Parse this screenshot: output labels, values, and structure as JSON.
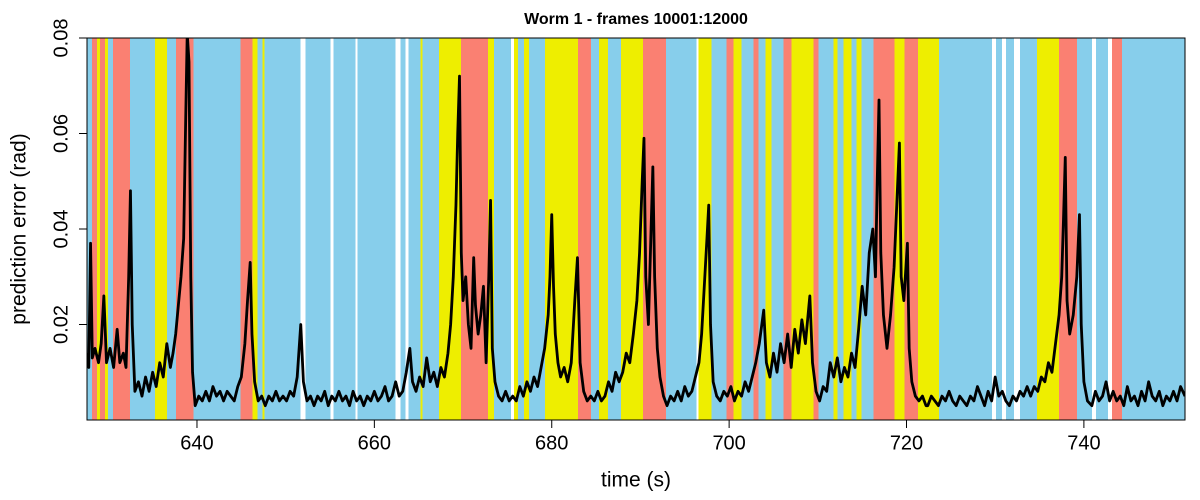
{
  "chart_data": {
    "type": "line",
    "title": "Worm 1 - frames 10001:12000",
    "x_label": "time (s)",
    "y_label": "prediction error (rad)",
    "xlim": [
      627.6,
      751.4
    ],
    "ylim": [
      0,
      0.08
    ],
    "xticks": [
      640,
      660,
      680,
      700,
      720,
      740
    ],
    "yticks": [
      0.02,
      0.04,
      0.06,
      0.08
    ],
    "line_color": "#000000",
    "band_palette": [
      "#87ceeb",
      "#fa8072",
      "#eeee00",
      "#ffffff"
    ],
    "band_edges": [
      627.6,
      628.16,
      628.73,
      629.07,
      629.63,
      629.97,
      630.54,
      632.46,
      635.28,
      636.64,
      637.66,
      638.9,
      639.58,
      644.89,
      646.24,
      646.81,
      647.37,
      647.6,
      651.67,
      652.23,
      655.06,
      655.4,
      657.88,
      658.11,
      662.4,
      662.97,
      663.53,
      663.87,
      665.23,
      665.45,
      667.26,
      669.75,
      672.8,
      673.48,
      675.4,
      675.74,
      676.19,
      676.87,
      677.43,
      679.24,
      682.97,
      684.44,
      685.34,
      686.36,
      687.83,
      690.31,
      692.91,
      696.3,
      696.53,
      698.0,
      699.69,
      700.48,
      701.38,
      702.74,
      703.31,
      704.1,
      704.78,
      706.13,
      707.04,
      709.52,
      710.09,
      711.78,
      712.24,
      712.91,
      713.82,
      714.38,
      714.94,
      716.3,
      718.67,
      719.8,
      721.27,
      723.64,
      729.63,
      730.09,
      730.76,
      731.22,
      732.12,
      732.8,
      734.72,
      737.21,
      739.24,
      740.93,
      741.38,
      742.74,
      743.19,
      744.32,
      751.4
    ],
    "band_states": [
      0,
      1,
      2,
      1,
      2,
      0,
      1,
      0,
      2,
      0,
      1,
      1,
      0,
      1,
      2,
      0,
      2,
      0,
      3,
      0,
      3,
      0,
      3,
      0,
      3,
      0,
      3,
      0,
      2,
      0,
      2,
      1,
      2,
      0,
      3,
      2,
      0,
      2,
      0,
      2,
      1,
      0,
      2,
      0,
      2,
      1,
      0,
      3,
      2,
      0,
      1,
      2,
      0,
      1,
      0,
      2,
      0,
      1,
      2,
      1,
      0,
      2,
      0,
      2,
      0,
      2,
      0,
      1,
      2,
      1,
      2,
      0,
      3,
      0,
      3,
      0,
      3,
      0,
      2,
      1,
      0,
      3,
      0,
      3,
      1,
      0
    ],
    "x": [
      627.6,
      627.8,
      628.0,
      628.2,
      628.5,
      628.9,
      629.2,
      629.5,
      629.8,
      630.2,
      630.6,
      631.0,
      631.3,
      631.7,
      632.0,
      632.3,
      632.5,
      632.7,
      633.0,
      633.4,
      633.8,
      634.2,
      634.6,
      635.0,
      635.4,
      635.8,
      636.2,
      636.6,
      637.0,
      637.3,
      637.6,
      637.9,
      638.2,
      638.5,
      638.7,
      638.9,
      639.1,
      639.3,
      639.5,
      639.8,
      640.2,
      640.6,
      641.0,
      641.4,
      641.8,
      642.2,
      642.6,
      643.0,
      643.4,
      643.8,
      644.2,
      644.6,
      645.0,
      645.4,
      645.7,
      646.0,
      646.2,
      646.5,
      646.9,
      647.3,
      647.7,
      648.1,
      648.5,
      648.9,
      649.3,
      649.7,
      650.1,
      650.5,
      650.9,
      651.3,
      651.7,
      652.0,
      652.4,
      652.8,
      653.2,
      653.6,
      654.0,
      654.4,
      654.8,
      655.2,
      655.6,
      656.0,
      656.4,
      656.8,
      657.2,
      657.6,
      658.0,
      658.4,
      658.8,
      659.2,
      659.6,
      660.0,
      660.4,
      660.8,
      661.2,
      661.6,
      662.0,
      662.4,
      662.8,
      663.2,
      663.6,
      664.0,
      664.3,
      664.7,
      665.1,
      665.5,
      665.9,
      666.3,
      666.7,
      667.1,
      667.5,
      667.9,
      668.3,
      668.6,
      668.9,
      669.2,
      669.4,
      669.6,
      669.8,
      670.0,
      670.3,
      670.6,
      670.9,
      671.2,
      671.4,
      671.7,
      672.0,
      672.3,
      672.6,
      672.9,
      673.1,
      673.3,
      673.6,
      674.0,
      674.4,
      674.8,
      675.2,
      675.6,
      676.0,
      676.4,
      676.8,
      677.2,
      677.6,
      678.0,
      678.4,
      678.8,
      679.2,
      679.6,
      679.8,
      680.0,
      680.2,
      680.4,
      680.7,
      681.0,
      681.4,
      681.8,
      682.2,
      682.6,
      682.9,
      683.2,
      683.6,
      684.0,
      684.4,
      684.8,
      685.2,
      685.6,
      686.0,
      686.4,
      686.8,
      687.2,
      687.6,
      688.0,
      688.4,
      688.8,
      689.2,
      689.6,
      689.9,
      690.2,
      690.4,
      690.6,
      690.9,
      691.2,
      691.4,
      691.6,
      691.9,
      692.2,
      692.6,
      693.0,
      693.4,
      693.8,
      694.2,
      694.6,
      695.0,
      695.4,
      695.8,
      696.2,
      696.6,
      696.9,
      697.2,
      697.5,
      697.7,
      697.9,
      698.2,
      698.6,
      699.0,
      699.4,
      699.8,
      700.2,
      700.6,
      701.0,
      701.4,
      701.8,
      702.2,
      702.6,
      703.0,
      703.4,
      703.9,
      704.2,
      704.6,
      705.0,
      705.4,
      705.8,
      706.2,
      706.6,
      707.0,
      707.4,
      707.8,
      708.2,
      708.6,
      709.1,
      709.4,
      709.8,
      710.2,
      710.6,
      711.0,
      711.4,
      711.8,
      712.2,
      712.6,
      713.0,
      713.4,
      713.8,
      714.2,
      714.6,
      715.0,
      715.4,
      715.8,
      716.2,
      716.5,
      716.7,
      716.9,
      717.1,
      717.4,
      717.8,
      718.2,
      718.6,
      718.9,
      719.2,
      719.4,
      719.7,
      720.1,
      720.3,
      720.6,
      721.0,
      721.4,
      721.8,
      722.2,
      722.4,
      722.8,
      723.2,
      723.6,
      724.0,
      724.4,
      724.8,
      725.2,
      725.6,
      726.0,
      726.4,
      726.8,
      727.2,
      727.6,
      728.0,
      728.4,
      728.8,
      729.2,
      729.6,
      730.0,
      730.4,
      730.8,
      731.2,
      731.6,
      732.0,
      732.4,
      732.8,
      733.2,
      733.6,
      734.0,
      734.4,
      734.8,
      735.2,
      735.6,
      736.0,
      736.4,
      736.8,
      737.2,
      737.5,
      737.7,
      737.9,
      738.1,
      738.4,
      738.8,
      739.2,
      739.5,
      739.7,
      740.0,
      740.4,
      740.9,
      741.3,
      741.7,
      742.1,
      742.5,
      742.9,
      743.3,
      743.7,
      744.1,
      744.5,
      744.9,
      745.3,
      745.7,
      746.1,
      746.5,
      746.9,
      747.3,
      747.7,
      748.1,
      748.5,
      748.9,
      749.3,
      749.7,
      750.1,
      750.5,
      750.9,
      751.4
    ],
    "values": [
      0.014,
      0.011,
      0.037,
      0.013,
      0.015,
      0.012,
      0.016,
      0.026,
      0.012,
      0.015,
      0.011,
      0.019,
      0.012,
      0.014,
      0.011,
      0.03,
      0.048,
      0.02,
      0.006,
      0.008,
      0.005,
      0.009,
      0.006,
      0.01,
      0.007,
      0.012,
      0.009,
      0.016,
      0.011,
      0.014,
      0.018,
      0.024,
      0.03,
      0.038,
      0.06,
      0.081,
      0.075,
      0.03,
      0.01,
      0.003,
      0.005,
      0.004,
      0.006,
      0.004,
      0.007,
      0.005,
      0.006,
      0.004,
      0.006,
      0.005,
      0.004,
      0.007,
      0.009,
      0.016,
      0.025,
      0.033,
      0.018,
      0.008,
      0.004,
      0.005,
      0.003,
      0.005,
      0.004,
      0.006,
      0.004,
      0.005,
      0.004,
      0.006,
      0.005,
      0.009,
      0.02,
      0.008,
      0.004,
      0.005,
      0.003,
      0.005,
      0.004,
      0.006,
      0.003,
      0.005,
      0.004,
      0.006,
      0.004,
      0.005,
      0.003,
      0.006,
      0.004,
      0.005,
      0.003,
      0.005,
      0.004,
      0.006,
      0.004,
      0.005,
      0.007,
      0.004,
      0.005,
      0.008,
      0.005,
      0.006,
      0.01,
      0.015,
      0.008,
      0.006,
      0.009,
      0.007,
      0.013,
      0.008,
      0.01,
      0.007,
      0.011,
      0.009,
      0.014,
      0.02,
      0.03,
      0.045,
      0.06,
      0.072,
      0.035,
      0.025,
      0.03,
      0.02,
      0.015,
      0.034,
      0.024,
      0.018,
      0.022,
      0.028,
      0.012,
      0.03,
      0.046,
      0.015,
      0.008,
      0.005,
      0.004,
      0.006,
      0.004,
      0.005,
      0.004,
      0.007,
      0.005,
      0.008,
      0.006,
      0.009,
      0.007,
      0.011,
      0.015,
      0.022,
      0.03,
      0.043,
      0.028,
      0.018,
      0.012,
      0.009,
      0.011,
      0.008,
      0.012,
      0.025,
      0.034,
      0.012,
      0.006,
      0.004,
      0.005,
      0.004,
      0.006,
      0.004,
      0.005,
      0.008,
      0.006,
      0.01,
      0.008,
      0.01,
      0.014,
      0.012,
      0.018,
      0.025,
      0.035,
      0.05,
      0.059,
      0.03,
      0.02,
      0.04,
      0.053,
      0.03,
      0.015,
      0.009,
      0.005,
      0.003,
      0.005,
      0.004,
      0.006,
      0.004,
      0.007,
      0.005,
      0.006,
      0.009,
      0.012,
      0.018,
      0.028,
      0.038,
      0.045,
      0.02,
      0.008,
      0.005,
      0.004,
      0.006,
      0.005,
      0.007,
      0.004,
      0.006,
      0.005,
      0.008,
      0.006,
      0.009,
      0.012,
      0.016,
      0.023,
      0.012,
      0.009,
      0.014,
      0.01,
      0.016,
      0.012,
      0.018,
      0.011,
      0.019,
      0.014,
      0.021,
      0.016,
      0.026,
      0.012,
      0.006,
      0.004,
      0.007,
      0.006,
      0.012,
      0.009,
      0.013,
      0.008,
      0.011,
      0.009,
      0.014,
      0.011,
      0.019,
      0.028,
      0.022,
      0.035,
      0.04,
      0.03,
      0.05,
      0.067,
      0.035,
      0.022,
      0.015,
      0.022,
      0.032,
      0.045,
      0.058,
      0.03,
      0.025,
      0.037,
      0.015,
      0.008,
      0.005,
      0.004,
      0.005,
      0.003,
      0.003,
      0.005,
      0.004,
      0.003,
      0.005,
      0.004,
      0.006,
      0.004,
      0.003,
      0.005,
      0.004,
      0.003,
      0.005,
      0.004,
      0.007,
      0.005,
      0.003,
      0.006,
      0.004,
      0.009,
      0.005,
      0.006,
      0.004,
      0.003,
      0.005,
      0.004,
      0.006,
      0.005,
      0.007,
      0.005,
      0.007,
      0.006,
      0.009,
      0.008,
      0.012,
      0.01,
      0.016,
      0.022,
      0.03,
      0.042,
      0.055,
      0.025,
      0.018,
      0.022,
      0.03,
      0.043,
      0.02,
      0.008,
      0.004,
      0.003,
      0.006,
      0.004,
      0.005,
      0.008,
      0.004,
      0.006,
      0.004,
      0.005,
      0.003,
      0.007,
      0.004,
      0.005,
      0.003,
      0.006,
      0.004,
      0.008,
      0.005,
      0.004,
      0.006,
      0.003,
      0.005,
      0.004,
      0.006,
      0.004,
      0.007,
      0.005
    ]
  }
}
